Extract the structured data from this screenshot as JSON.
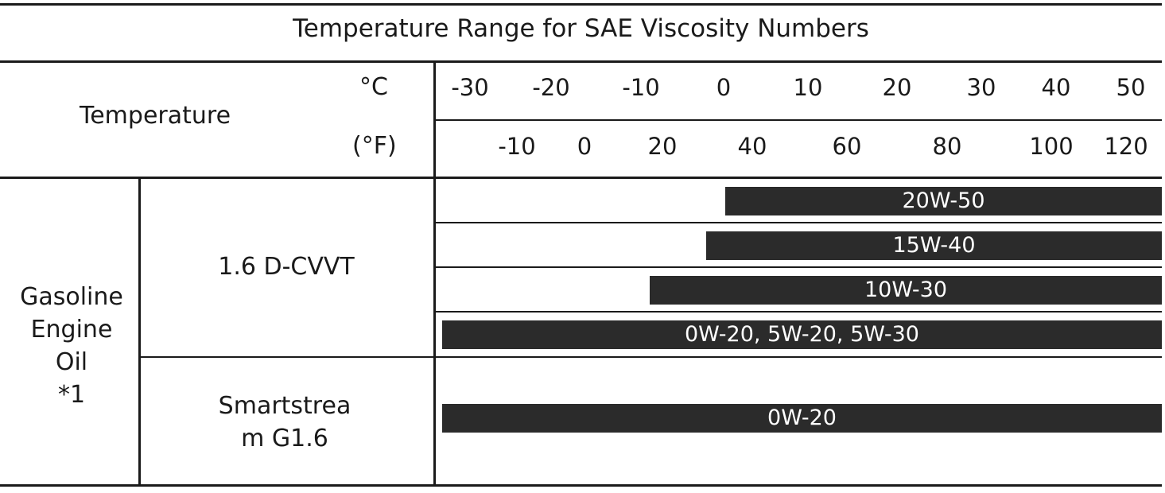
{
  "title": "Temperature Range for SAE Viscosity Numbers",
  "header": {
    "row_label": "Temperature",
    "celsius_unit": "°C",
    "fahrenheit_unit": "(°F)",
    "celsius_ticks": [
      "-30",
      "-20",
      "-10",
      "0",
      "10",
      "20",
      "30",
      "40",
      "50"
    ],
    "fahrenheit_ticks": [
      "-10",
      "0",
      "20",
      "40",
      "60",
      "80",
      "100",
      "120"
    ]
  },
  "category": "Gasoline Engine Oil *1",
  "engines": [
    {
      "name": "1.6 D-CVVT",
      "grades": [
        {
          "label": "20W-50",
          "min_c": 0,
          "max_c": 50
        },
        {
          "label": "15W-40",
          "min_c": -2,
          "max_c": 50
        },
        {
          "label": "10W-30",
          "min_c": -8,
          "max_c": 50
        },
        {
          "label": "0W-20, 5W-20, 5W-30",
          "min_c": -30,
          "max_c": 50
        }
      ]
    },
    {
      "name": "Smartstrea m G1.6",
      "grades": [
        {
          "label": "0W-20",
          "min_c": -30,
          "max_c": 50
        }
      ]
    }
  ]
}
